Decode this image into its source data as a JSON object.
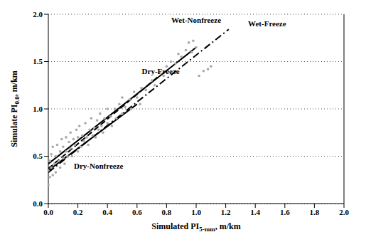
{
  "chart_data": {
    "type": "scatter",
    "x_label": {
      "text": "Simulated PI",
      "sub": "5-mm",
      "rest": ", m/km"
    },
    "y_label": {
      "text": "Simulate PI",
      "sub": "0.0",
      "rest": ", m/km"
    },
    "xlim": [
      0,
      2
    ],
    "ylim": [
      0,
      2
    ],
    "xticks": [
      {
        "value": 0,
        "label": "0.0"
      },
      {
        "value": 0.2,
        "label": "0.2"
      },
      {
        "value": 0.4,
        "label": "0.4"
      },
      {
        "value": 0.6,
        "label": "0.6"
      },
      {
        "value": 0.8,
        "label": "0.8"
      },
      {
        "value": 1,
        "label": "1.0"
      },
      {
        "value": 1.2,
        "label": "1.2"
      },
      {
        "value": 1.4,
        "label": "1.4"
      },
      {
        "value": 1.6,
        "label": "1.6"
      },
      {
        "value": 1.8,
        "label": "1.8"
      },
      {
        "value": 2,
        "label": "2.0"
      }
    ],
    "yticks": [
      {
        "value": 0,
        "label": "0.0"
      },
      {
        "value": 0.5,
        "label": "0.5"
      },
      {
        "value": 1,
        "label": "1.0"
      },
      {
        "value": 1.5,
        "label": "1.5"
      },
      {
        "value": 2,
        "label": "2.0"
      }
    ],
    "grid": true,
    "series": [
      {
        "type": "scatter",
        "color": "#a8a8a8",
        "marker": "circle",
        "x": [
          0.0,
          0.0,
          0.01,
          0.01,
          0.02,
          0.02,
          0.03,
          0.03,
          0.04,
          0.05,
          0.05,
          0.06,
          0.07,
          0.08,
          0.08,
          0.09,
          0.1,
          0.1,
          0.11,
          0.12,
          0.12,
          0.13,
          0.14,
          0.15,
          0.15,
          0.16,
          0.17,
          0.18,
          0.19,
          0.2,
          0.2,
          0.21,
          0.22,
          0.23,
          0.24,
          0.25,
          0.26,
          0.27,
          0.28,
          0.29,
          0.3,
          0.31,
          0.32,
          0.33,
          0.34,
          0.35,
          0.36,
          0.37,
          0.38,
          0.4,
          0.4,
          0.42,
          0.43,
          0.45,
          0.46,
          0.48,
          0.5,
          0.5,
          0.52,
          0.55,
          0.56,
          0.58,
          0.6,
          0.62,
          0.63,
          0.66,
          0.7,
          0.72,
          0.75,
          0.78,
          0.8,
          0.83,
          0.86,
          0.88,
          0.9,
          0.93,
          0.95,
          0.98,
          0.97,
          1.0,
          1.05,
          1.08,
          1.1,
          1.02
        ],
        "values": [
          0.2,
          0.35,
          0.45,
          0.28,
          0.52,
          0.38,
          0.3,
          0.6,
          0.42,
          0.5,
          0.33,
          0.62,
          0.45,
          0.38,
          0.55,
          0.68,
          0.48,
          0.6,
          0.42,
          0.7,
          0.55,
          0.5,
          0.65,
          0.58,
          0.75,
          0.5,
          0.68,
          0.62,
          0.78,
          0.55,
          0.7,
          0.82,
          0.6,
          0.72,
          0.66,
          0.85,
          0.7,
          0.62,
          0.78,
          0.9,
          0.72,
          0.8,
          0.7,
          0.88,
          0.78,
          0.95,
          0.82,
          0.75,
          0.9,
          0.85,
          1.0,
          0.92,
          0.82,
          1.0,
          0.9,
          1.05,
          0.95,
          1.12,
          1.02,
          1.1,
          1.0,
          1.18,
          1.12,
          1.05,
          1.22,
          1.2,
          1.3,
          1.25,
          1.38,
          1.35,
          1.45,
          1.5,
          1.48,
          1.58,
          1.55,
          1.62,
          1.7,
          1.72,
          1.6,
          1.65,
          1.4,
          1.42,
          1.45,
          1.35
        ]
      },
      {
        "type": "line",
        "color": "#000000",
        "line_style": "solid",
        "x": [
          0,
          0.6
        ],
        "values": [
          0.35,
          1.05
        ]
      },
      {
        "type": "line",
        "color": "#000000",
        "line_style": "dashed",
        "x": [
          0,
          0.75
        ],
        "values": [
          0.37,
          1.35
        ]
      },
      {
        "type": "line",
        "color": "#000000",
        "line_style": "solid",
        "x": [
          0,
          1.0
        ],
        "values": [
          0.42,
          1.65
        ]
      },
      {
        "type": "line",
        "color": "#000000",
        "line_style": "dashdot",
        "x": [
          0,
          1.22
        ],
        "values": [
          0.33,
          1.84
        ]
      }
    ],
    "annotations": [
      {
        "text": "Wet-Nonfreeze",
        "x": 1.0,
        "y": 1.94
      },
      {
        "text": "Wet-Freeze",
        "x": 1.48,
        "y": 1.9
      },
      {
        "text": "Dry-Freeze",
        "x": 0.76,
        "y": 1.4
      },
      {
        "text": "Dry-Nonfreeze",
        "x": 0.34,
        "y": 0.4
      }
    ]
  }
}
